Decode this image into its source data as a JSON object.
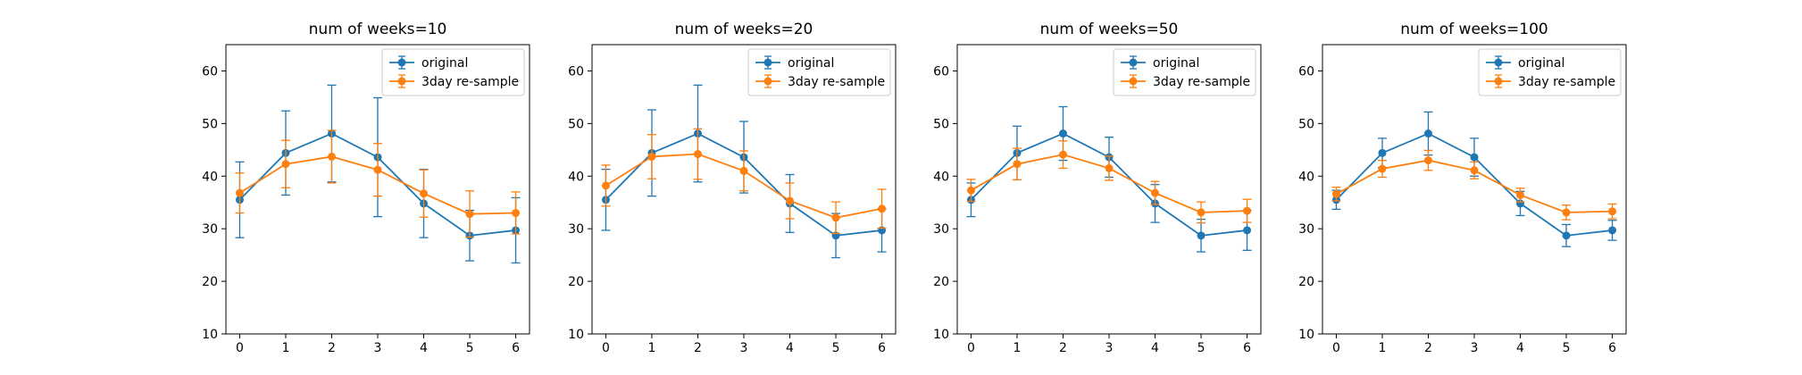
{
  "colors": {
    "original": "#1f77b4",
    "resample": "#ff7f0e"
  },
  "chart_data": [
    {
      "type": "line",
      "title": "num of weeks=10",
      "x": [
        0,
        1,
        2,
        3,
        4,
        5,
        6
      ],
      "xticks": [
        0,
        1,
        2,
        3,
        4,
        5,
        6
      ],
      "yticks": [
        10,
        20,
        30,
        40,
        50,
        60
      ],
      "ylim": [
        10,
        65
      ],
      "xlim": [
        -0.3,
        6.3
      ],
      "legend": "top-right",
      "series": [
        {
          "name": "original",
          "values": [
            35.5,
            44.4,
            48.1,
            43.6,
            34.8,
            28.7,
            29.7
          ],
          "err": [
            7.2,
            8.0,
            9.2,
            11.3,
            6.5,
            4.8,
            6.2
          ]
        },
        {
          "name": "3day re-sample",
          "values": [
            36.8,
            42.3,
            43.7,
            41.2,
            36.7,
            32.8,
            33.0
          ],
          "err": [
            3.8,
            4.5,
            5.0,
            5.0,
            4.5,
            4.4,
            4.0
          ]
        }
      ]
    },
    {
      "type": "line",
      "title": "num of weeks=20",
      "x": [
        0,
        1,
        2,
        3,
        4,
        5,
        6
      ],
      "xticks": [
        0,
        1,
        2,
        3,
        4,
        5,
        6
      ],
      "yticks": [
        10,
        20,
        30,
        40,
        50,
        60
      ],
      "ylim": [
        10,
        65
      ],
      "xlim": [
        -0.3,
        6.3
      ],
      "legend": "top-right",
      "series": [
        {
          "name": "original",
          "values": [
            35.5,
            44.4,
            48.1,
            43.6,
            34.8,
            28.7,
            29.7
          ],
          "err": [
            5.8,
            8.2,
            9.2,
            6.8,
            5.5,
            4.2,
            4.1
          ]
        },
        {
          "name": "3day re-sample",
          "values": [
            38.2,
            43.7,
            44.2,
            41.0,
            35.3,
            32.1,
            33.8
          ],
          "err": [
            3.9,
            4.2,
            4.8,
            3.8,
            3.4,
            3.0,
            3.7
          ]
        }
      ]
    },
    {
      "type": "line",
      "title": "num of weeks=50",
      "x": [
        0,
        1,
        2,
        3,
        4,
        5,
        6
      ],
      "xticks": [
        0,
        1,
        2,
        3,
        4,
        5,
        6
      ],
      "yticks": [
        10,
        20,
        30,
        40,
        50,
        60
      ],
      "ylim": [
        10,
        65
      ],
      "xlim": [
        -0.3,
        6.3
      ],
      "legend": "top-right",
      "series": [
        {
          "name": "original",
          "values": [
            35.5,
            44.4,
            48.1,
            43.6,
            34.8,
            28.7,
            29.7
          ],
          "err": [
            3.2,
            5.1,
            5.1,
            3.8,
            3.6,
            3.1,
            3.8
          ]
        },
        {
          "name": "3day re-sample",
          "values": [
            37.3,
            42.3,
            44.1,
            41.5,
            36.8,
            33.1,
            33.4
          ],
          "err": [
            2.1,
            3.0,
            2.6,
            2.3,
            2.2,
            2.0,
            2.2
          ]
        }
      ]
    },
    {
      "type": "line",
      "title": "num of weeks=100",
      "x": [
        0,
        1,
        2,
        3,
        4,
        5,
        6
      ],
      "xticks": [
        0,
        1,
        2,
        3,
        4,
        5,
        6
      ],
      "yticks": [
        10,
        20,
        30,
        40,
        50,
        60
      ],
      "ylim": [
        10,
        65
      ],
      "xlim": [
        -0.3,
        6.3
      ],
      "legend": "top-right",
      "series": [
        {
          "name": "original",
          "values": [
            35.5,
            44.4,
            48.1,
            43.6,
            34.8,
            28.7,
            29.7
          ],
          "err": [
            1.8,
            2.8,
            4.1,
            3.6,
            2.3,
            2.1,
            1.9
          ]
        },
        {
          "name": "3day re-sample",
          "values": [
            36.6,
            41.4,
            43.0,
            41.1,
            36.4,
            33.1,
            33.3
          ],
          "err": [
            1.3,
            1.6,
            1.9,
            1.6,
            1.3,
            1.4,
            1.4
          ]
        }
      ]
    }
  ]
}
